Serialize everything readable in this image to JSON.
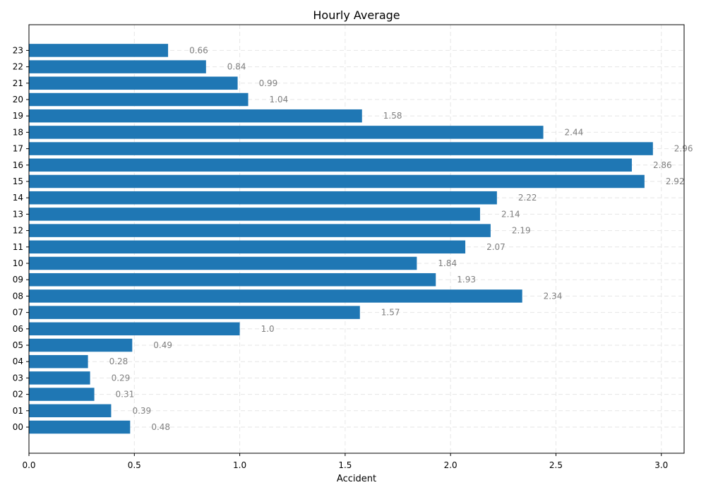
{
  "chart_data": {
    "type": "bar",
    "orientation": "horizontal",
    "title": "Hourly Average",
    "xlabel": "Accident",
    "ylabel": "",
    "categories": [
      "00",
      "01",
      "02",
      "03",
      "04",
      "05",
      "06",
      "07",
      "08",
      "09",
      "10",
      "11",
      "12",
      "13",
      "14",
      "15",
      "16",
      "17",
      "18",
      "19",
      "20",
      "21",
      "22",
      "23"
    ],
    "values": [
      0.48,
      0.39,
      0.31,
      0.29,
      0.28,
      0.49,
      1.0,
      1.57,
      2.34,
      1.93,
      1.84,
      2.07,
      2.19,
      2.14,
      2.22,
      2.92,
      2.86,
      2.96,
      2.44,
      1.58,
      1.04,
      0.99,
      0.84,
      0.66
    ],
    "data_labels": [
      "0.48",
      "0.39",
      "0.31",
      "0.29",
      "0.28",
      "0.49",
      "1.0",
      "1.57",
      "2.34",
      "1.93",
      "1.84",
      "2.07",
      "2.19",
      "2.14",
      "2.22",
      "2.92",
      "2.86",
      "2.96",
      "2.44",
      "1.58",
      "1.04",
      "0.99",
      "0.84",
      "0.66"
    ],
    "xlim": [
      0,
      3.108
    ],
    "xticks": [
      0.0,
      0.5,
      1.0,
      1.5,
      2.0,
      2.5,
      3.0
    ],
    "xtick_labels": [
      "0.0",
      "0.5",
      "1.0",
      "1.5",
      "2.0",
      "2.5",
      "3.0"
    ],
    "grid": true,
    "legend": "none",
    "colors": {
      "bar": "#1f77b4",
      "data_label": "#808080",
      "grid": "#e6e6e6",
      "axes": "#000000"
    }
  }
}
